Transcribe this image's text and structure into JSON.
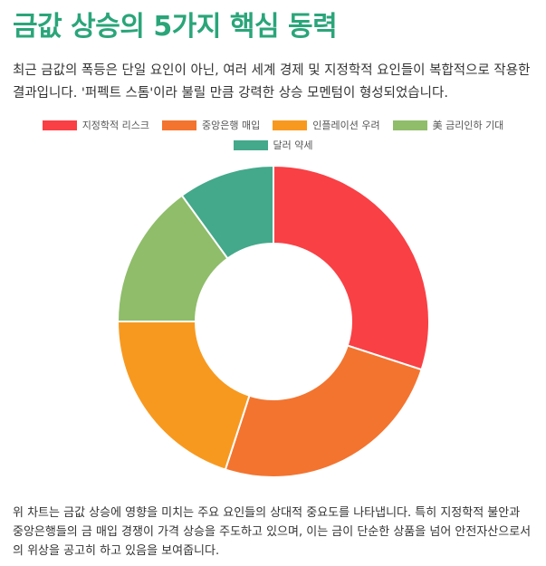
{
  "header": {
    "title": "금값 상승의 5가지 핵심 동력",
    "intro": "최근 금값의 폭등은 단일 요인이 아닌, 여러 세계 경제 및 지정학적 요인들이 복합적으로 작용한 결과입니다. '퍼펙트 스톰'이라 불릴 만큼 강력한 상승 모멘텀이 형성되었습니다."
  },
  "chart_data": {
    "type": "pie",
    "donut": true,
    "categories": [
      "지정학적 리스크",
      "중앙은행 매입",
      "인플레이션 우려",
      "美 금리인하 기대",
      "달러 약세"
    ],
    "values": [
      30,
      25,
      20,
      15,
      10
    ],
    "colors": [
      "#f94045",
      "#f3742f",
      "#f8991f",
      "#8fbd6a",
      "#43a98a"
    ],
    "legend_position": "top"
  },
  "footer": {
    "text": "위 차트는 금값 상승에 영향을 미치는 주요 요인들의 상대적 중요도를 나타냅니다. 특히 지정학적 불안과 중앙은행들의 금 매입 경쟁이 가격 상승을 주도하고 있으며, 이는 금이 단순한 상품을 넘어 안전자산으로서의 위상을 공고히 하고 있음을 보여줍니다."
  }
}
